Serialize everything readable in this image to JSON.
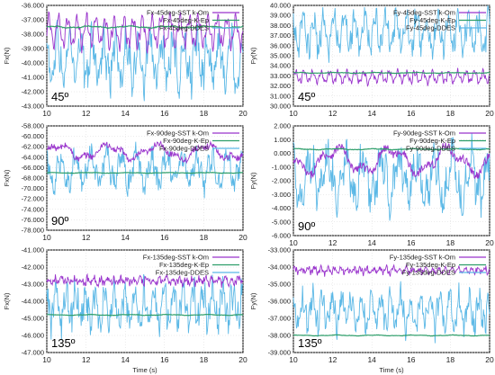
{
  "legend_colors": [
    "#9933cc",
    "#2e9e6a",
    "#5bb8e6"
  ],
  "axis_color": "#000000",
  "chart_data": [
    {
      "type": "line",
      "ylabel": "Fx(N)",
      "xlabel": "",
      "angle_label": "45º",
      "xlim": [
        10,
        20
      ],
      "ylim": [
        -43,
        -36
      ],
      "xticks": [
        10,
        12,
        14,
        16,
        18,
        20
      ],
      "xtick_labels": [
        "10",
        "12",
        "14",
        "16",
        "18",
        "20"
      ],
      "yticks": [
        -43,
        -42,
        -41,
        -40,
        -39,
        -38,
        -37,
        -36
      ],
      "ytick_labels": [
        "-43.000",
        "-42.000",
        "-41.000",
        "-40.000",
        "-39.000",
        "-38.000",
        "-37.000",
        "-36.000"
      ],
      "legend_position": "top-right",
      "series": [
        {
          "name": "Fx-45deg-SST k-Om",
          "center": -37.8,
          "amp": 0.9,
          "noise": 0.25,
          "freq": 2.1
        },
        {
          "name": "Fx-45deg-K-Ep",
          "center": -37.5,
          "amp": 0.05,
          "noise": 0.03,
          "freq": 0.5
        },
        {
          "name": "Fx-45deg-DDES",
          "center": -39.8,
          "amp": 1.4,
          "noise": 1.1,
          "freq": 1.7
        }
      ]
    },
    {
      "type": "line",
      "ylabel": "Fy(N)",
      "xlabel": "",
      "angle_label": "45º",
      "xlim": [
        10,
        20
      ],
      "ylim": [
        30,
        40
      ],
      "xticks": [
        10,
        12,
        14,
        16,
        18,
        20
      ],
      "xtick_labels": [
        "10",
        "12",
        "14",
        "16",
        "18",
        "20"
      ],
      "yticks": [
        30,
        31,
        32,
        33,
        34,
        35,
        36,
        37,
        38,
        39,
        40
      ],
      "ytick_labels": [
        "30.000",
        "31.000",
        "32.000",
        "33.000",
        "34.000",
        "35.000",
        "36.000",
        "37.000",
        "38.000",
        "39.000",
        "40.000"
      ],
      "legend_position": "top-right",
      "series": [
        {
          "name": "Fy-45deg-SST k-Om",
          "center": 32.9,
          "amp": 0.5,
          "noise": 0.2,
          "freq": 2.3
        },
        {
          "name": "Fy-45deg-K-Ep",
          "center": 33.3,
          "amp": 0.03,
          "noise": 0.02,
          "freq": 0.5
        },
        {
          "name": "Fy-45deg-DDES",
          "center": 37.3,
          "amp": 1.5,
          "noise": 1.1,
          "freq": 1.9
        }
      ]
    },
    {
      "type": "line",
      "ylabel": "Fx(N)",
      "xlabel": "",
      "angle_label": "90º",
      "xlim": [
        10,
        20
      ],
      "ylim": [
        -78,
        -58
      ],
      "xticks": [
        10,
        12,
        14,
        16,
        18,
        20
      ],
      "xtick_labels": [
        "10",
        "12",
        "14",
        "16",
        "18",
        "20"
      ],
      "yticks": [
        -78,
        -76,
        -74,
        -72,
        -70,
        -68,
        -66,
        -64,
        -62,
        -60,
        -58
      ],
      "ytick_labels": [
        "-78.000",
        "-76.000",
        "-74.000",
        "-72.000",
        "-70.000",
        "-68.000",
        "-66.000",
        "-64.000",
        "-62.000",
        "-60.000",
        "-58.000"
      ],
      "legend_position": "top-right",
      "series": [
        {
          "name": "Fx-90deg-SST k-Om",
          "center": -63.0,
          "amp": 1.2,
          "noise": 0.6,
          "freq": 0.4
        },
        {
          "name": "Fx-90deg-K-Ep",
          "center": -67.0,
          "amp": 0.05,
          "noise": 0.03,
          "freq": 0.5
        },
        {
          "name": "Fx-90deg-DDES",
          "center": -66.5,
          "amp": 2.5,
          "noise": 2.2,
          "freq": 1.3
        }
      ]
    },
    {
      "type": "line",
      "ylabel": "Fy(N)",
      "xlabel": "",
      "angle_label": "90º",
      "xlim": [
        10,
        20
      ],
      "ylim": [
        -6,
        2
      ],
      "xticks": [
        10,
        12,
        14,
        16,
        18,
        20
      ],
      "xtick_labels": [
        "10",
        "12",
        "14",
        "16",
        "18",
        "20"
      ],
      "yticks": [
        -6,
        -5,
        -4,
        -3,
        -2,
        -1,
        0,
        1,
        2
      ],
      "ytick_labels": [
        "-6.000",
        "-5.000",
        "-4.000",
        "-3.000",
        "-2.000",
        "-1.000",
        "0.000",
        "1.000",
        "2.000"
      ],
      "legend_position": "top-right",
      "series": [
        {
          "name": "Fy-90deg-SST k-Om",
          "center": -0.5,
          "amp": 0.8,
          "noise": 0.3,
          "freq": 0.35
        },
        {
          "name": "Fy-90deg-K-Ep",
          "center": 0.3,
          "amp": 0.03,
          "noise": 0.02,
          "freq": 0.5
        },
        {
          "name": "Fy-90deg-DDES",
          "center": -1.8,
          "amp": 1.5,
          "noise": 1.3,
          "freq": 1.1
        }
      ]
    },
    {
      "type": "line",
      "ylabel": "Fx(N)",
      "xlabel": "Time (s)",
      "angle_label": "135º",
      "xlim": [
        10,
        20
      ],
      "ylim": [
        -47,
        -41
      ],
      "xticks": [
        10,
        12,
        14,
        16,
        18,
        20
      ],
      "xtick_labels": [
        "10",
        "12",
        "14",
        "16",
        "18",
        "20"
      ],
      "yticks": [
        -47,
        -46,
        -45,
        -44,
        -43,
        -42,
        -41
      ],
      "ytick_labels": [
        "-47.000",
        "-46.000",
        "-45.000",
        "-44.000",
        "-43.000",
        "-42.000",
        "-41.000"
      ],
      "legend_position": "top-right",
      "series": [
        {
          "name": "Fx-135deg-SST k-Om",
          "center": -42.8,
          "amp": 0.15,
          "noise": 0.2,
          "freq": 3.0
        },
        {
          "name": "Fx-135deg-K-Ep",
          "center": -44.8,
          "amp": 0.02,
          "noise": 0.01,
          "freq": 0.5
        },
        {
          "name": "Fx-135deg-DDES",
          "center": -44.3,
          "amp": 0.9,
          "noise": 0.8,
          "freq": 2.0
        }
      ]
    },
    {
      "type": "line",
      "ylabel": "Fy(N)",
      "xlabel": "Time (s)",
      "angle_label": "135º",
      "xlim": [
        10,
        20
      ],
      "ylim": [
        -39,
        -33
      ],
      "xticks": [
        10,
        12,
        14,
        16,
        18,
        20
      ],
      "xtick_labels": [
        "10",
        "12",
        "14",
        "16",
        "18",
        "20"
      ],
      "yticks": [
        -39,
        -38,
        -37,
        -36,
        -35,
        -34,
        -33
      ],
      "ytick_labels": [
        "-39.000",
        "-38.000",
        "-37.000",
        "-36.000",
        "-35.000",
        "-34.000",
        "-33.000"
      ],
      "legend_position": "top-right",
      "series": [
        {
          "name": "Fy-135deg-SST k-Om",
          "center": -34.2,
          "amp": 0.15,
          "noise": 0.15,
          "freq": 3.0
        },
        {
          "name": "Fy-135deg-K-Ep",
          "center": -38.0,
          "amp": 0.02,
          "noise": 0.01,
          "freq": 0.5
        },
        {
          "name": "Fy-135deg-DDES",
          "center": -36.6,
          "amp": 0.8,
          "noise": 0.7,
          "freq": 2.0
        }
      ]
    }
  ]
}
